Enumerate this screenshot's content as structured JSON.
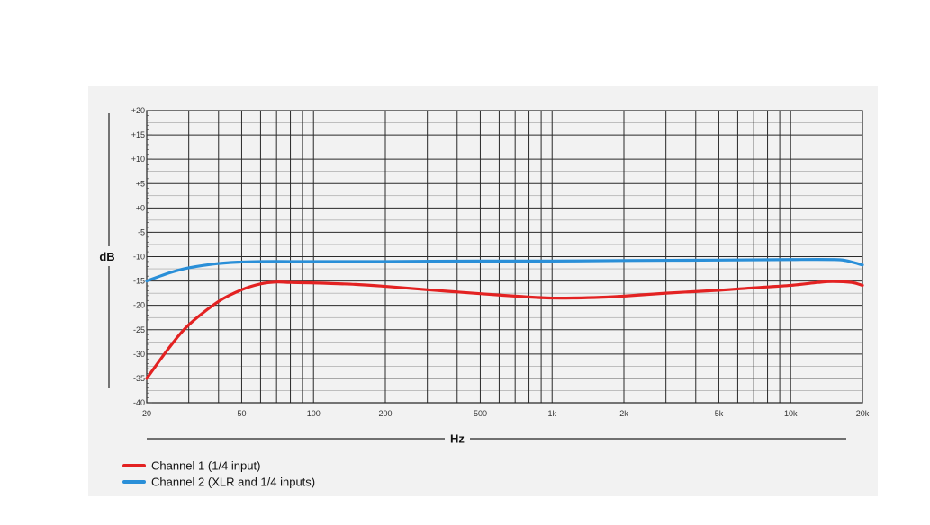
{
  "chart_data": {
    "type": "line",
    "xlabel": "Hz",
    "ylabel": "dB",
    "xscale": "log",
    "xlim": [
      20,
      20000
    ],
    "ylim": [
      -40,
      20
    ],
    "grid": true,
    "legend_position": "bottom-left",
    "x_tick_labels": [
      {
        "value": 20,
        "label": "20"
      },
      {
        "value": 50,
        "label": "50"
      },
      {
        "value": 100,
        "label": "100"
      },
      {
        "value": 200,
        "label": "200"
      },
      {
        "value": 500,
        "label": "500"
      },
      {
        "value": 1000,
        "label": "1k"
      },
      {
        "value": 2000,
        "label": "2k"
      },
      {
        "value": 5000,
        "label": "5k"
      },
      {
        "value": 10000,
        "label": "10k"
      },
      {
        "value": 20000,
        "label": "20k"
      }
    ],
    "y_tick_labels": [
      {
        "value": 20,
        "label": "+20"
      },
      {
        "value": 15,
        "label": "+15"
      },
      {
        "value": 10,
        "label": "+10"
      },
      {
        "value": 5,
        "label": "+5"
      },
      {
        "value": 0,
        "label": "+0"
      },
      {
        "value": -5,
        "label": "-5"
      },
      {
        "value": -10,
        "label": "-10"
      },
      {
        "value": -15,
        "label": "-15"
      },
      {
        "value": -20,
        "label": "-20"
      },
      {
        "value": -25,
        "label": "-25"
      },
      {
        "value": -30,
        "label": "-30"
      },
      {
        "value": -35,
        "label": "-35"
      },
      {
        "value": -40,
        "label": "-40"
      }
    ],
    "series": [
      {
        "name": "Channel 1 (1/4 input)",
        "color": "#e32222",
        "x": [
          20,
          25,
          30,
          40,
          50,
          60,
          70,
          80,
          100,
          150,
          200,
          300,
          500,
          700,
          1000,
          1500,
          2000,
          3000,
          5000,
          7000,
          10000,
          13000,
          15000,
          18000,
          20000
        ],
        "y": [
          -35,
          -28.5,
          -24,
          -19.2,
          -16.8,
          -15.6,
          -15.2,
          -15.3,
          -15.4,
          -15.7,
          -16.1,
          -16.8,
          -17.6,
          -18.1,
          -18.5,
          -18.4,
          -18.1,
          -17.5,
          -16.9,
          -16.4,
          -15.9,
          -15.3,
          -15.1,
          -15.3,
          -15.9
        ]
      },
      {
        "name": "Channel 2 (XLR and 1/4 inputs)",
        "color": "#2a8fd8",
        "x": [
          20,
          25,
          30,
          40,
          50,
          60,
          80,
          100,
          200,
          500,
          1000,
          2000,
          5000,
          10000,
          15000,
          17000,
          20000
        ],
        "y": [
          -15,
          -13.3,
          -12.3,
          -11.4,
          -11.1,
          -11,
          -11,
          -11,
          -11,
          -10.9,
          -10.9,
          -10.8,
          -10.7,
          -10.6,
          -10.6,
          -10.8,
          -11.7
        ]
      }
    ]
  }
}
